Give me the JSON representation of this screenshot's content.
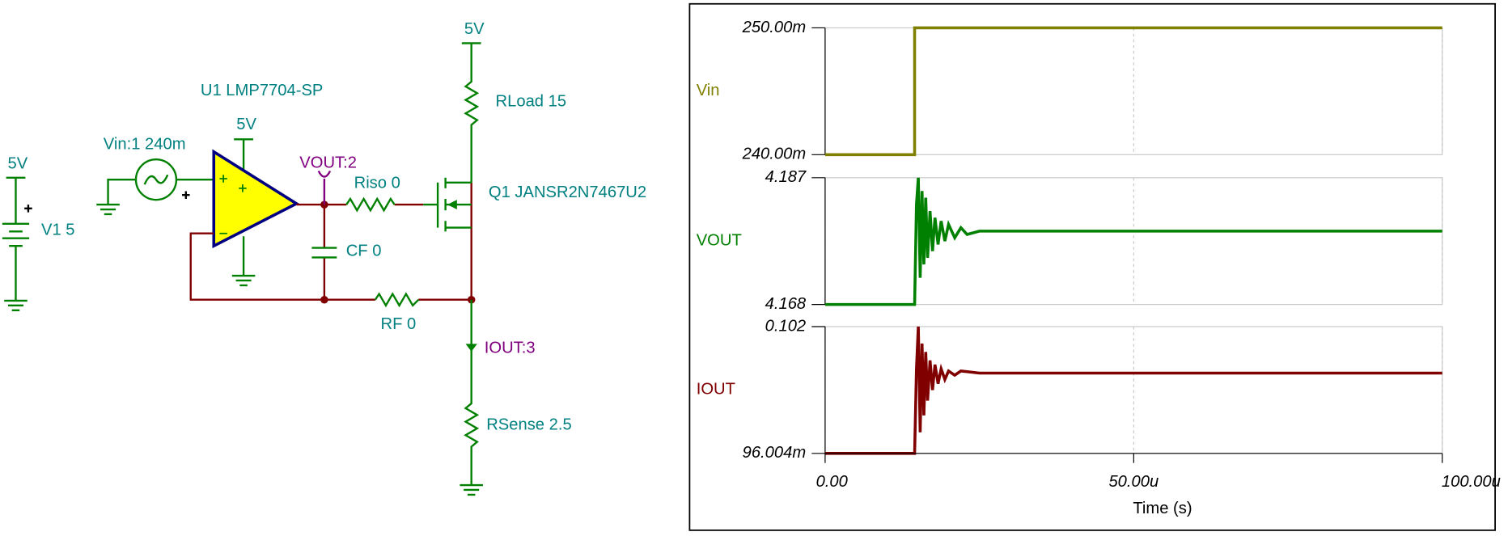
{
  "schematic": {
    "labels": [
      "5V",
      "U1 LMP7704-SP",
      "RLoad 15",
      "5V",
      "5V",
      "Vin:1 240m",
      "VOUT:2",
      "Riso 0",
      "Q1 JANSR2N7467U2",
      "V1 5",
      "CF 0",
      "RF 0",
      "IOUT:3",
      "RSense 2.5"
    ]
  },
  "chart_data": [
    {
      "type": "line",
      "x": [
        0,
        1.45e-05,
        1.45e-05,
        0.0001
      ],
      "series": [
        {
          "name": "Vin",
          "color": "#808000",
          "values": [
            0.24,
            0.24,
            0.25,
            0.25
          ]
        }
      ],
      "xlim": [
        0,
        0.0001
      ],
      "ylim": [
        0.24,
        0.25
      ],
      "yticks": [
        {
          "value": 0.24,
          "label": "240.00m"
        },
        {
          "value": 0.25,
          "label": "250.00m"
        }
      ]
    },
    {
      "type": "line",
      "x": [
        0,
        1.45e-05,
        1.48e-05,
        1.51e-05,
        1.54e-05,
        1.57e-05,
        1.6e-05,
        1.63e-05,
        1.66e-05,
        1.7e-05,
        1.74e-05,
        1.78e-05,
        1.83e-05,
        1.88e-05,
        1.94e-05,
        2e-05,
        2.1e-05,
        2.2e-05,
        2.3e-05,
        2.5e-05,
        0.0001
      ],
      "series": [
        {
          "name": "VOUT",
          "color": "#008000",
          "values": [
            4.168,
            4.168,
            4.183,
            4.187,
            4.172,
            4.185,
            4.174,
            4.184,
            4.175,
            4.182,
            4.176,
            4.181,
            4.177,
            4.1805,
            4.1775,
            4.18,
            4.178,
            4.1795,
            4.1785,
            4.179,
            4.179
          ]
        }
      ],
      "xlim": [
        0,
        0.0001
      ],
      "ylim": [
        4.168,
        4.187
      ],
      "yticks": [
        4.168,
        4.187
      ]
    },
    {
      "type": "line",
      "x": [
        0,
        1.45e-05,
        1.48e-05,
        1.51e-05,
        1.54e-05,
        1.57e-05,
        1.6e-05,
        1.63e-05,
        1.66e-05,
        1.7e-05,
        1.74e-05,
        1.78e-05,
        1.83e-05,
        1.88e-05,
        1.94e-05,
        2e-05,
        2.1e-05,
        2.2e-05,
        2.5e-05,
        0.0001
      ],
      "series": [
        {
          "name": "IOUT",
          "color": "#800000",
          "values": [
            0.096004,
            0.096004,
            0.1,
            0.102,
            0.097,
            0.1012,
            0.0978,
            0.1008,
            0.0985,
            0.1004,
            0.099,
            0.1002,
            0.0993,
            0.1,
            0.0995,
            0.0999,
            0.0997,
            0.0999,
            0.0998,
            0.0998
          ]
        }
      ],
      "xlim": [
        0,
        0.0001
      ],
      "ylim": [
        0.096004,
        0.102
      ],
      "yticks": [
        {
          "value": 0.096004,
          "label": "96.004m"
        },
        0.102
      ],
      "xticks": [
        {
          "value": 0,
          "label": "0.00"
        },
        {
          "value": 5e-05,
          "label": "50.00u"
        },
        {
          "value": 0.0001,
          "label": "100.00u"
        }
      ],
      "xlabel": "Time (s)"
    }
  ]
}
